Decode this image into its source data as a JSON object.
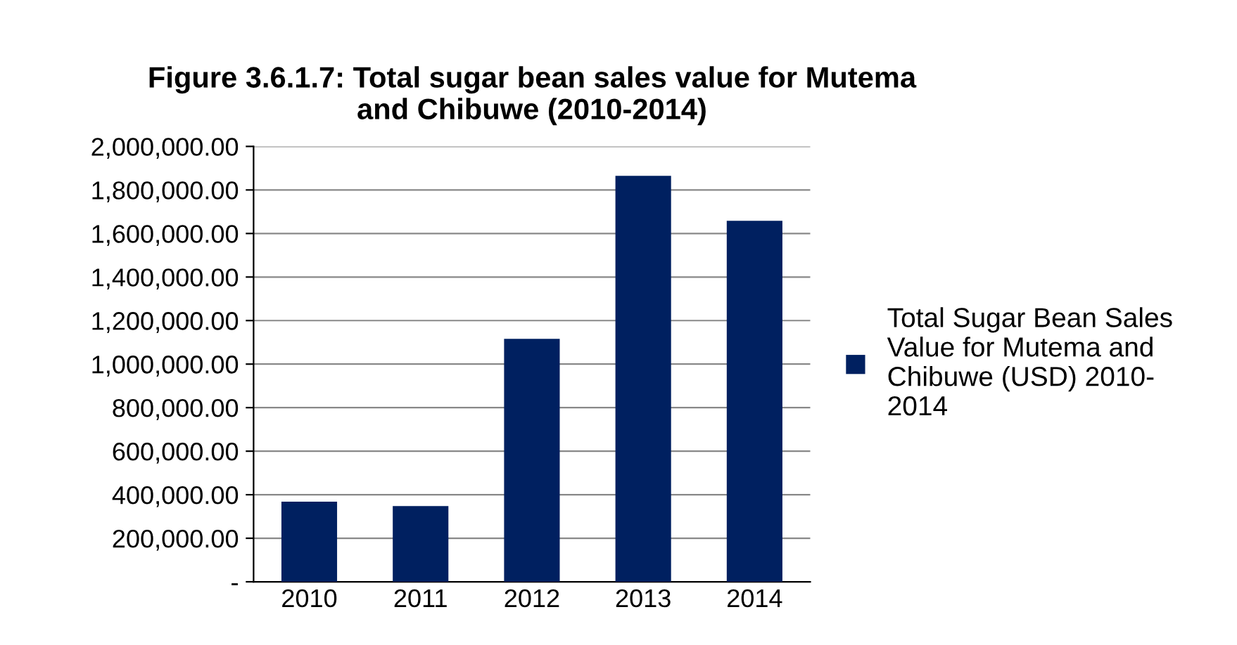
{
  "chart_data": {
    "type": "bar",
    "title": "Figure 3.6.1.7: Total sugar bean sales value for Mutema\nand Chibuwe (2010-2014)",
    "categories": [
      "2010",
      "2011",
      "2012",
      "2013",
      "2014"
    ],
    "series": [
      {
        "name": "Total Sugar Bean Sales\nValue for Mutema and\nChibuwe (USD) 2010-\n2014",
        "color": "#002060",
        "values": [
          368000,
          348000,
          1116000,
          1865000,
          1658000
        ]
      }
    ],
    "ylim": [
      0,
      2000000
    ],
    "yticks": [
      {
        "value": 0,
        "label": "-"
      },
      {
        "value": 200000,
        "label": "200,000.00"
      },
      {
        "value": 400000,
        "label": "400,000.00"
      },
      {
        "value": 600000,
        "label": "600,000.00"
      },
      {
        "value": 800000,
        "label": "800,000.00"
      },
      {
        "value": 1000000,
        "label": "1,000,000.00"
      },
      {
        "value": 1200000,
        "label": "1,200,000.00"
      },
      {
        "value": 1400000,
        "label": "1,400,000.00"
      },
      {
        "value": 1600000,
        "label": "1,600,000.00"
      },
      {
        "value": 1800000,
        "label": "1,800,000.00"
      },
      {
        "value": 2000000,
        "label": "2,000,000.00"
      }
    ],
    "grid": "y",
    "legend": "right"
  }
}
